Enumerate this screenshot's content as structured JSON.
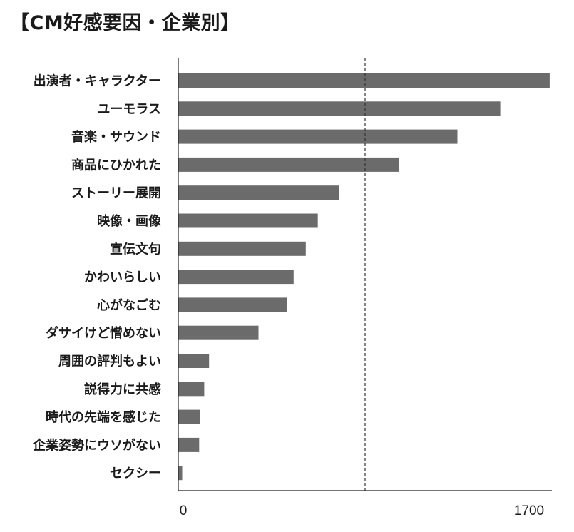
{
  "chart_data": {
    "type": "bar",
    "orientation": "horizontal",
    "title": "【CM好感要因・企業別】",
    "categories": [
      "出演者・キャラクター",
      "ユーモラス",
      "音楽・サウンド",
      "商品にひかれた",
      "ストーリー展開",
      "映像・画像",
      "宣伝文句",
      "かわいらしい",
      "心がなごむ",
      "ダサイけど憎めない",
      "周囲の評判もよい",
      "説得力に共感",
      "時代の先端を感じた",
      "企業姿勢にウソがない",
      "セクシー"
    ],
    "values": [
      1690,
      1465,
      1270,
      1005,
      730,
      635,
      580,
      525,
      495,
      365,
      140,
      118,
      100,
      95,
      18
    ],
    "xlim": [
      0,
      1700
    ],
    "x_tick_labels": [
      "0",
      "1700"
    ],
    "reference_line": 850,
    "bar_color": "#6b6b6b",
    "grid": false
  }
}
